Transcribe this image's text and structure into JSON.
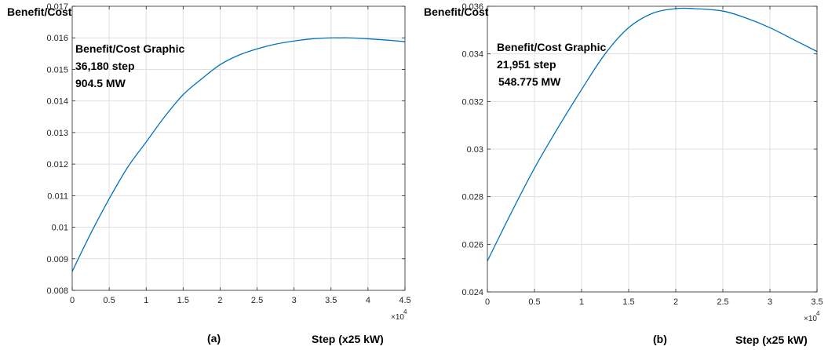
{
  "chart_data": [
    {
      "type": "line",
      "panel_label": "(a)",
      "ylabel": "Benefit/Cost",
      "xlabel": "Step (x25 kW)",
      "x_multiplier_base": "×10",
      "x_multiplier_exp": "4",
      "xlim": [
        0,
        4.5
      ],
      "ylim": [
        0.008,
        0.017
      ],
      "xticks": [
        0,
        0.5,
        1,
        1.5,
        2,
        2.5,
        3,
        3.5,
        4,
        4.5
      ],
      "xtick_labels": [
        "0",
        "0.5",
        "1",
        "1.5",
        "2",
        "2.5",
        "3",
        "3.5",
        "4",
        "4.5"
      ],
      "yticks": [
        0.008,
        0.009,
        0.01,
        0.011,
        0.012,
        0.013,
        0.014,
        0.015,
        0.016,
        0.017
      ],
      "ytick_labels": [
        "0.008",
        "0.009",
        "0.01",
        "0.011",
        "0.012",
        "0.013",
        "0.014",
        "0.015",
        "0.016",
        "0.017"
      ],
      "grid": true,
      "annotations": [
        "Benefit/Cost Graphic",
        "36,180 step",
        "904.5 MW"
      ],
      "series": [
        {
          "color": "#0072BD",
          "x": [
            0,
            0.25,
            0.5,
            0.75,
            1.0,
            1.25,
            1.5,
            1.75,
            2.0,
            2.25,
            2.5,
            2.75,
            3.0,
            3.25,
            3.5,
            3.618,
            3.75,
            4.0,
            4.25,
            4.5
          ],
          "y": [
            0.0086,
            0.0098,
            0.0109,
            0.0119,
            0.0127,
            0.0135,
            0.0142,
            0.0147,
            0.01515,
            0.01545,
            0.01565,
            0.0158,
            0.0159,
            0.01597,
            0.016,
            0.016,
            0.016,
            0.01597,
            0.01593,
            0.01588
          ]
        }
      ]
    },
    {
      "type": "line",
      "panel_label": "(b)",
      "ylabel": "Benefit/Cost",
      "xlabel": "Step (x25 kW)",
      "x_multiplier_base": "×10",
      "x_multiplier_exp": "4",
      "xlim": [
        0,
        3.5
      ],
      "ylim": [
        0.024,
        0.036
      ],
      "xticks": [
        0,
        0.5,
        1,
        1.5,
        2,
        2.5,
        3,
        3.5
      ],
      "xtick_labels": [
        "0",
        "0.5",
        "1",
        "1.5",
        "2",
        "2.5",
        "3",
        "3.5"
      ],
      "yticks": [
        0.024,
        0.026,
        0.028,
        0.03,
        0.032,
        0.034,
        0.036
      ],
      "ytick_labels": [
        "0.024",
        "0.026",
        "0.028",
        "0.03",
        "0.032",
        "0.034",
        "0.036"
      ],
      "grid": true,
      "annotations": [
        "Benefit/Cost Graphic",
        "21,951 step",
        "548.775 MW"
      ],
      "series": [
        {
          "color": "#0072BD",
          "x": [
            0,
            0.25,
            0.5,
            0.75,
            1.0,
            1.25,
            1.5,
            1.75,
            2.0,
            2.195,
            2.5,
            2.75,
            3.0,
            3.25,
            3.5
          ],
          "y": [
            0.0253,
            0.0273,
            0.0292,
            0.0309,
            0.0325,
            0.034,
            0.0351,
            0.0357,
            0.0359,
            0.0359,
            0.0358,
            0.0355,
            0.0351,
            0.0346,
            0.0341
          ]
        }
      ]
    }
  ]
}
